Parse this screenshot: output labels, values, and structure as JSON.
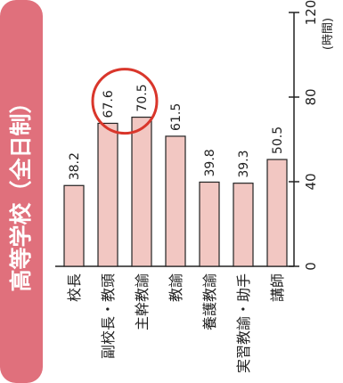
{
  "chart_data": {
    "type": "bar",
    "title": "高等学校（全日制）",
    "categories": [
      "校長",
      "副校長・教頭",
      "主幹教諭",
      "教諭",
      "養護教諭",
      "実習教諭・助手",
      "講師"
    ],
    "values": [
      38.2,
      67.6,
      70.5,
      61.5,
      39.8,
      39.3,
      50.5
    ],
    "value_labels": [
      "38.2",
      "67.6",
      "70.5",
      "61.5",
      "39.8",
      "39.3",
      "50.5"
    ],
    "ylim": [
      0,
      120
    ],
    "yticks": [
      "0",
      "40",
      "80",
      "120"
    ],
    "ylabel": "(時間)",
    "highlight_category": "副校長・教頭",
    "bar_color": "#f2c7c2",
    "title_bg_color": "#e0707c",
    "highlight_circle_color": "#d9362b",
    "grid": false
  }
}
